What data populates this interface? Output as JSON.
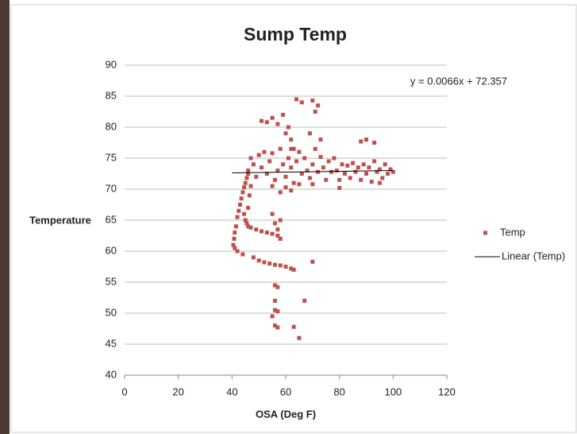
{
  "chart_data": {
    "type": "scatter",
    "title": "Sump Temp",
    "x_label": "OSA (Deg F)",
    "y_label": "Temperature",
    "annotation": "y = 0.0066x + 72.357",
    "xlim": [
      0,
      120
    ],
    "xticks": [
      0,
      20,
      40,
      60,
      80,
      100,
      120
    ],
    "ylim": [
      40,
      90
    ],
    "yticks": [
      40,
      45,
      50,
      55,
      60,
      65,
      70,
      75,
      80,
      85,
      90
    ],
    "grid": true,
    "legend": "right",
    "series": [
      {
        "name": "Temp",
        "color": "#c0504d",
        "x": [
          40.5,
          40.8,
          41,
          41.5,
          42,
          42.5,
          43,
          43.5,
          44,
          44.5,
          45,
          45.5,
          46,
          41,
          42,
          44,
          44.5,
          45,
          45.5,
          46,
          47,
          49,
          51,
          53,
          55,
          57,
          58,
          46,
          46.5,
          47,
          48,
          50,
          52,
          54,
          56,
          58,
          60,
          62,
          63,
          70,
          55,
          56,
          57,
          56,
          57,
          56,
          56,
          57,
          55,
          56,
          57,
          63,
          65,
          67,
          58,
          51,
          53,
          55,
          57,
          59,
          60,
          61,
          62,
          63,
          64,
          66,
          70,
          71,
          72,
          69,
          73,
          90,
          93,
          88,
          62,
          46,
          47,
          48,
          49,
          50,
          51,
          52,
          53,
          54,
          55,
          56,
          57,
          58,
          59,
          60,
          61,
          62,
          63,
          64,
          65,
          66,
          67,
          68,
          69,
          70,
          71,
          72,
          73,
          74,
          75,
          76,
          77,
          78,
          79,
          80,
          81,
          82,
          83,
          84,
          85,
          86,
          87,
          88,
          89,
          90,
          91,
          92,
          93,
          94,
          95,
          96,
          97,
          98,
          99,
          100,
          55,
          60,
          65,
          58,
          62,
          70,
          80,
          95
        ],
        "values": [
          61,
          62,
          63,
          64,
          65.5,
          66.5,
          67.5,
          68.5,
          69.5,
          70.3,
          71,
          71.8,
          72.5,
          60.5,
          60,
          59.5,
          66,
          65,
          64.5,
          64,
          63.8,
          63.5,
          63.2,
          63,
          62.8,
          62.5,
          62,
          67,
          69,
          70.5,
          59,
          58.5,
          58.2,
          58,
          57.8,
          57.7,
          57.5,
          57.2,
          57,
          58.3,
          66,
          64.5,
          63.5,
          54.5,
          54.2,
          52,
          50.5,
          50.3,
          49.5,
          48,
          47.7,
          47.8,
          46,
          52,
          65,
          81,
          80.8,
          81.5,
          80.5,
          82,
          79,
          80,
          78,
          76.5,
          84.5,
          84,
          84.3,
          82.5,
          83.5,
          79,
          78,
          78,
          77.5,
          77.7,
          76.5,
          73,
          75,
          74,
          72,
          75.5,
          73.5,
          76,
          72.5,
          74.5,
          75.8,
          71.5,
          73,
          76.5,
          74,
          72,
          75,
          73.5,
          71,
          74.5,
          76,
          72.5,
          75,
          73,
          71.8,
          74,
          76.5,
          72.8,
          75.2,
          73.5,
          71.5,
          74.5,
          72.8,
          75,
          73,
          71.5,
          74,
          72.5,
          73.8,
          71.8,
          74.2,
          72.8,
          73.5,
          71.5,
          74,
          72.5,
          73.5,
          71.2,
          74.5,
          72.8,
          73.2,
          71.8,
          74,
          72.5,
          73.2,
          72.8,
          70.5,
          70.3,
          70.8,
          69.5,
          69.8,
          70.8,
          70.2,
          71
        ]
      },
      {
        "name": "Linear (Temp)",
        "color": "#000000",
        "type": "line",
        "x": [
          40,
          100
        ],
        "values": [
          72.621,
          73.017
        ]
      }
    ]
  }
}
